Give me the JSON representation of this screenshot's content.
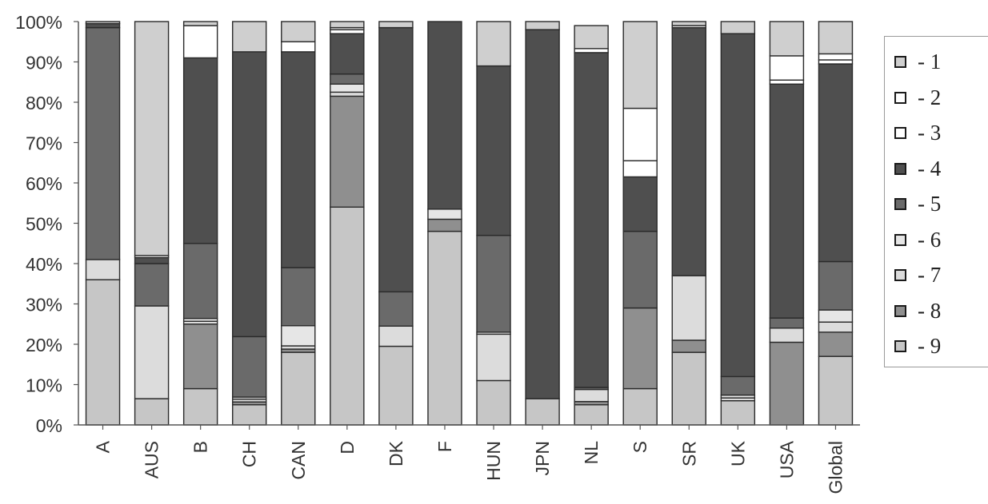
{
  "chart_data": {
    "type": "bar",
    "stacked": true,
    "title": "",
    "xlabel": "",
    "ylabel": "",
    "ylim": [
      0,
      100
    ],
    "y_ticks": [
      "0%",
      "10%",
      "20%",
      "30%",
      "40%",
      "50%",
      "60%",
      "70%",
      "80%",
      "90%",
      "100%"
    ],
    "grid": false,
    "legend_position": "right",
    "categories": [
      "A",
      "AUS",
      "B",
      "CH",
      "CAN",
      "D",
      "DK",
      "F",
      "HUN",
      "JPN",
      "NL",
      "S",
      "SR",
      "UK",
      "USA",
      "Global"
    ],
    "series": [
      {
        "name": "9",
        "color": "#c6c6c6",
        "values": [
          36,
          6.5,
          9,
          5,
          18,
          54,
          19.5,
          48,
          11,
          6.5,
          5,
          9,
          18,
          6,
          0,
          17
        ]
      },
      {
        "name": "8",
        "color": "#8f8f8f",
        "values": [
          0,
          0,
          16,
          0.7,
          0.8,
          27.5,
          0,
          3,
          0,
          0,
          0.8,
          20,
          3,
          0,
          20.5,
          6
        ]
      },
      {
        "name": "7",
        "color": "#dcdcdc",
        "values": [
          5,
          23,
          0.7,
          0.7,
          0.8,
          1,
          5,
          0,
          11.5,
          0,
          3,
          0,
          16,
          0.7,
          3.5,
          2.5
        ]
      },
      {
        "name": "6",
        "color": "#e6e6e6",
        "values": [
          0,
          0,
          0.7,
          0.5,
          5,
          2,
          0,
          2.5,
          0.5,
          0,
          0,
          0,
          0,
          0.7,
          0,
          3
        ]
      },
      {
        "name": "5",
        "color": "#6a6a6a",
        "values": [
          57.5,
          10.5,
          18.6,
          15,
          14.4,
          2.5,
          8.5,
          0,
          24,
          0,
          0.5,
          19,
          0,
          4.6,
          2.5,
          12
        ]
      },
      {
        "name": "4",
        "color": "#4f4f4f",
        "values": [
          1,
          1.5,
          46,
          70.6,
          53.5,
          10,
          65.5,
          46.5,
          42,
          91.5,
          83,
          13.5,
          61.5,
          85,
          58,
          49
        ]
      },
      {
        "name": "3",
        "color": "#ffffff",
        "values": [
          0,
          0.5,
          0,
          0,
          0,
          1,
          0,
          0,
          0,
          0,
          1,
          4,
          0.5,
          0,
          1,
          1
        ]
      },
      {
        "name": "2",
        "color": "#ffffff",
        "values": [
          0,
          0,
          8,
          0,
          2.5,
          0.5,
          0,
          0,
          0,
          0,
          0,
          13,
          0,
          0,
          6,
          1.5
        ]
      },
      {
        "name": "1",
        "color": "#cfcfcf",
        "values": [
          0.5,
          58,
          1,
          7.5,
          5,
          1.5,
          1.5,
          0,
          11,
          2,
          5.7,
          21.5,
          1,
          3,
          8.5,
          8
        ]
      }
    ]
  },
  "legend": {
    "items": [
      {
        "label": "- 1",
        "color": "#cfcfcf"
      },
      {
        "label": "- 2",
        "color": "#ffffff"
      },
      {
        "label": "- 3",
        "color": "#ffffff"
      },
      {
        "label": "- 4",
        "color": "#4f4f4f"
      },
      {
        "label": "- 5",
        "color": "#6a6a6a"
      },
      {
        "label": "- 6",
        "color": "#e6e6e6"
      },
      {
        "label": "- 7",
        "color": "#dcdcdc"
      },
      {
        "label": "- 8",
        "color": "#8f8f8f"
      },
      {
        "label": "- 9",
        "color": "#c6c6c6"
      }
    ]
  }
}
